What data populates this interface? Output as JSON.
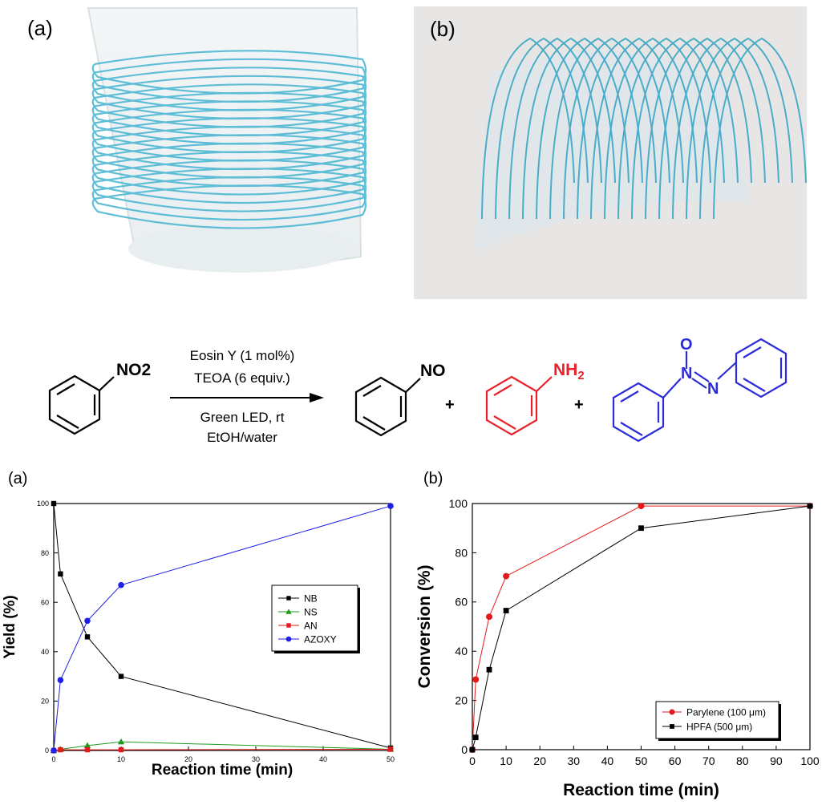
{
  "photos": {
    "a": {
      "label": "(a)"
    },
    "b": {
      "label": "(b)"
    }
  },
  "reaction": {
    "reactant_group": "NO2",
    "conditions_above": [
      "Eosin Y (1 mol%)",
      "TEOA (6 equiv.)"
    ],
    "conditions_below": [
      "Green LED, rt",
      "EtOH/water"
    ],
    "product1_group": "NO",
    "product2_group": "NH2",
    "product3_oxygen": "O",
    "product3_n1": "N",
    "product3_n2": "N",
    "plus": "+",
    "colors": {
      "black": "#000000",
      "red": "#e8202a",
      "blue": "#2b2bd9"
    }
  },
  "chart_data": [
    {
      "panel_label": "(a)",
      "type": "line",
      "xlabel": "Reaction time (min)",
      "ylabel": "Yield (%)",
      "xlim": [
        0,
        50
      ],
      "ylim": [
        0,
        100
      ],
      "xticks": [
        0,
        10,
        20,
        30,
        40,
        50
      ],
      "yticks": [
        0,
        20,
        40,
        60,
        80,
        100
      ],
      "legend_position": "right-middle",
      "series": [
        {
          "name": "NB",
          "color": "#000000",
          "marker": "square",
          "x": [
            0,
            1,
            5,
            10,
            50
          ],
          "y": [
            100,
            71.5,
            46,
            30,
            1
          ]
        },
        {
          "name": "NS",
          "color": "#1f9a1f",
          "marker": "triangle",
          "x": [
            0,
            1,
            5,
            10,
            50
          ],
          "y": [
            0,
            0.5,
            2,
            3.5,
            0.5
          ]
        },
        {
          "name": "AN",
          "color": "#e31a1c",
          "marker": "square",
          "x": [
            0,
            1,
            5,
            10,
            50
          ],
          "y": [
            0,
            0.3,
            0.3,
            0.3,
            0.5
          ]
        },
        {
          "name": "AZOXY",
          "color": "#1f1fe8",
          "marker": "circle",
          "x": [
            0,
            1,
            5,
            10,
            50
          ],
          "y": [
            0,
            28.5,
            52.5,
            67,
            99
          ]
        }
      ]
    },
    {
      "panel_label": "(b)",
      "type": "line",
      "xlabel": "Reaction time (min)",
      "ylabel": "Conversion (%)",
      "xlim": [
        0,
        100
      ],
      "ylim": [
        0,
        100
      ],
      "xticks": [
        0,
        10,
        20,
        30,
        40,
        50,
        60,
        70,
        80,
        90,
        100
      ],
      "yticks": [
        0,
        20,
        40,
        60,
        80,
        100
      ],
      "legend_position": "bottom-right",
      "series": [
        {
          "name": "Parylene (100 μm)",
          "color": "#e31a1c",
          "marker": "circle",
          "x": [
            0,
            1,
            5,
            10,
            50,
            100
          ],
          "y": [
            0,
            28.5,
            54,
            70.5,
            99,
            99
          ]
        },
        {
          "name": "HPFA (500 μm)",
          "color": "#000000",
          "marker": "square",
          "x": [
            0,
            1,
            5,
            10,
            50,
            100
          ],
          "y": [
            0,
            5,
            32.5,
            56.5,
            90,
            99
          ]
        }
      ]
    }
  ]
}
